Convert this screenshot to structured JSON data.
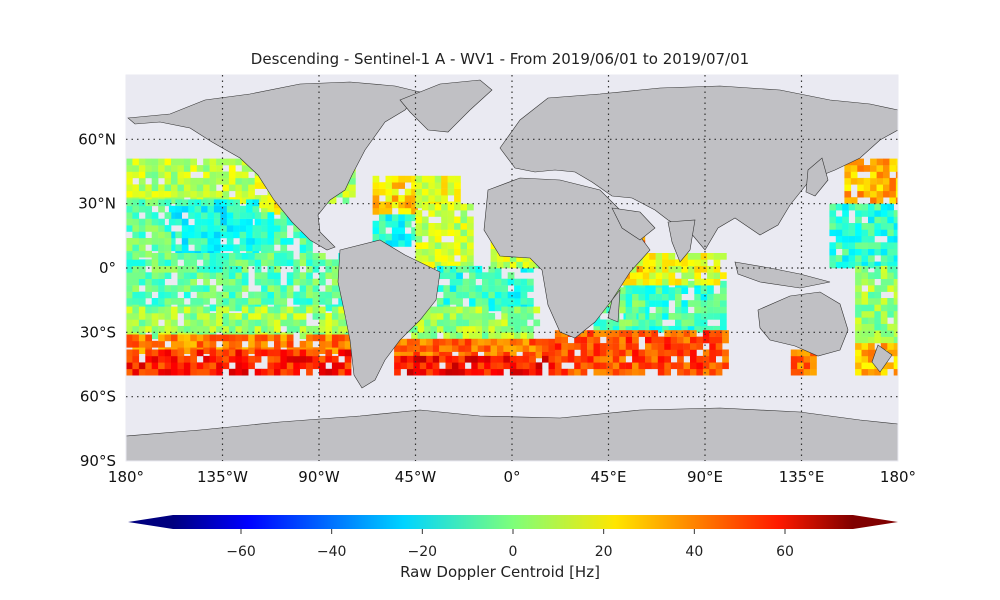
{
  "title": "Descending - Sentinel-1 A - WV1 - From 2019/06/01 to 2019/07/01",
  "map": {
    "projection": "equirectangular",
    "lon_range": [
      -180,
      180
    ],
    "lat_range": [
      -90,
      90
    ],
    "land_color": "#c0c0c4",
    "ocean_color": "#eaeaf2",
    "gridlines": "dotted",
    "lon_ticks": [
      {
        "lon": -180,
        "label": "180°"
      },
      {
        "lon": -135,
        "label": "135°W"
      },
      {
        "lon": -90,
        "label": "90°W"
      },
      {
        "lon": -45,
        "label": "45°W"
      },
      {
        "lon": 0,
        "label": "0°"
      },
      {
        "lon": 45,
        "label": "45°E"
      },
      {
        "lon": 90,
        "label": "90°E"
      },
      {
        "lon": 135,
        "label": "135°E"
      },
      {
        "lon": 180,
        "label": "180°"
      }
    ],
    "lat_ticks": [
      {
        "lat": 60,
        "label": "60°N"
      },
      {
        "lat": 30,
        "label": "30°N"
      },
      {
        "lat": 0,
        "label": "0°"
      },
      {
        "lat": -30,
        "label": "30°S"
      },
      {
        "lat": -60,
        "label": "60°S"
      },
      {
        "lat": -90,
        "label": "90°S"
      }
    ]
  },
  "colorbar": {
    "label": "Raw Doppler Centroid [Hz]",
    "colormap": "jet",
    "range": [
      -75,
      75
    ],
    "extend": "both",
    "ticks": [
      {
        "value": -60,
        "label": "−60"
      },
      {
        "value": -40,
        "label": "−40"
      },
      {
        "value": -20,
        "label": "−20"
      },
      {
        "value": 0,
        "label": "0"
      },
      {
        "value": 20,
        "label": "20"
      },
      {
        "value": 40,
        "label": "40"
      },
      {
        "value": 60,
        "label": "60"
      }
    ]
  },
  "chart_data": {
    "type": "heatmap",
    "title": "Descending - Sentinel-1 A - WV1 - From 2019/06/01 to 2019/07/01",
    "xlabel": "",
    "ylabel": "",
    "xlim": [
      -180,
      180
    ],
    "ylim": [
      -90,
      90
    ],
    "colorbar_label": "Raw Doppler Centroid [Hz]",
    "value_range": [
      -75,
      75
    ],
    "regions": [
      {
        "lon_min": -180,
        "lon_max": -120,
        "lat_min": 30,
        "lat_max": 50,
        "value": 8
      },
      {
        "lon_min": -120,
        "lon_max": -107,
        "lat_min": 25,
        "lat_max": 50,
        "value": 15
      },
      {
        "lon_min": -160,
        "lon_max": -120,
        "lat_min": 5,
        "lat_max": 30,
        "value": -15
      },
      {
        "lon_min": -180,
        "lon_max": -160,
        "lat_min": 5,
        "lat_max": 30,
        "value": -5
      },
      {
        "lon_min": -120,
        "lon_max": -95,
        "lat_min": 5,
        "lat_max": 25,
        "value": -8
      },
      {
        "lon_min": -180,
        "lon_max": -80,
        "lat_min": -20,
        "lat_max": 5,
        "value": -5
      },
      {
        "lon_min": -180,
        "lon_max": -75,
        "lat_min": -33,
        "lat_max": -20,
        "value": 5
      },
      {
        "lon_min": -180,
        "lon_max": -75,
        "lat_min": -40,
        "lat_max": -33,
        "value": 38
      },
      {
        "lon_min": -180,
        "lon_max": -75,
        "lat_min": -50,
        "lat_max": -40,
        "value": 52
      },
      {
        "lon_min": -100,
        "lon_max": -75,
        "lat_min": 30,
        "lat_max": 50,
        "value": 6
      },
      {
        "lon_min": -65,
        "lon_max": -45,
        "lat_min": 25,
        "lat_max": 42,
        "value": 25
      },
      {
        "lon_min": -45,
        "lon_max": -25,
        "lat_min": 28,
        "lat_max": 42,
        "value": 15
      },
      {
        "lon_min": -65,
        "lon_max": -45,
        "lat_min": 10,
        "lat_max": 25,
        "value": -15
      },
      {
        "lon_min": -45,
        "lon_max": -20,
        "lat_min": 0,
        "lat_max": 28,
        "value": 10
      },
      {
        "lon_min": -35,
        "lon_max": 10,
        "lat_min": -20,
        "lat_max": 0,
        "value": -12
      },
      {
        "lon_min": -50,
        "lon_max": 12,
        "lat_min": -33,
        "lat_max": -20,
        "value": 5
      },
      {
        "lon_min": -55,
        "lon_max": 18,
        "lat_min": -42,
        "lat_max": -33,
        "value": 40
      },
      {
        "lon_min": -55,
        "lon_max": 18,
        "lat_min": -50,
        "lat_max": -42,
        "value": 55
      },
      {
        "lon_min": -10,
        "lon_max": 30,
        "lat_min": 0,
        "lat_max": 28,
        "value": 10
      },
      {
        "lon_min": 38,
        "lon_max": 60,
        "lat_min": -8,
        "lat_max": 18,
        "value": 38
      },
      {
        "lon_min": 52,
        "lon_max": 100,
        "lat_min": -30,
        "lat_max": -8,
        "value": -10
      },
      {
        "lon_min": 38,
        "lon_max": 60,
        "lat_min": -30,
        "lat_max": -8,
        "value": -5
      },
      {
        "lon_min": 52,
        "lon_max": 100,
        "lat_min": -8,
        "lat_max": 5,
        "value": 15
      },
      {
        "lon_min": 20,
        "lon_max": 100,
        "lat_min": -50,
        "lat_max": -30,
        "value": 45
      },
      {
        "lon_min": 155,
        "lon_max": 180,
        "lat_min": 30,
        "lat_max": 50,
        "value": 30
      },
      {
        "lon_min": 148,
        "lon_max": 180,
        "lat_min": 0,
        "lat_max": 30,
        "value": -12
      },
      {
        "lon_min": 160,
        "lon_max": 180,
        "lat_min": -35,
        "lat_max": 0,
        "value": 3
      },
      {
        "lon_min": 160,
        "lon_max": 180,
        "lat_min": -50,
        "lat_max": -35,
        "value": 30
      },
      {
        "lon_min": 130,
        "lon_max": 140,
        "lat_min": -50,
        "lat_max": -40,
        "value": 40
      }
    ]
  }
}
